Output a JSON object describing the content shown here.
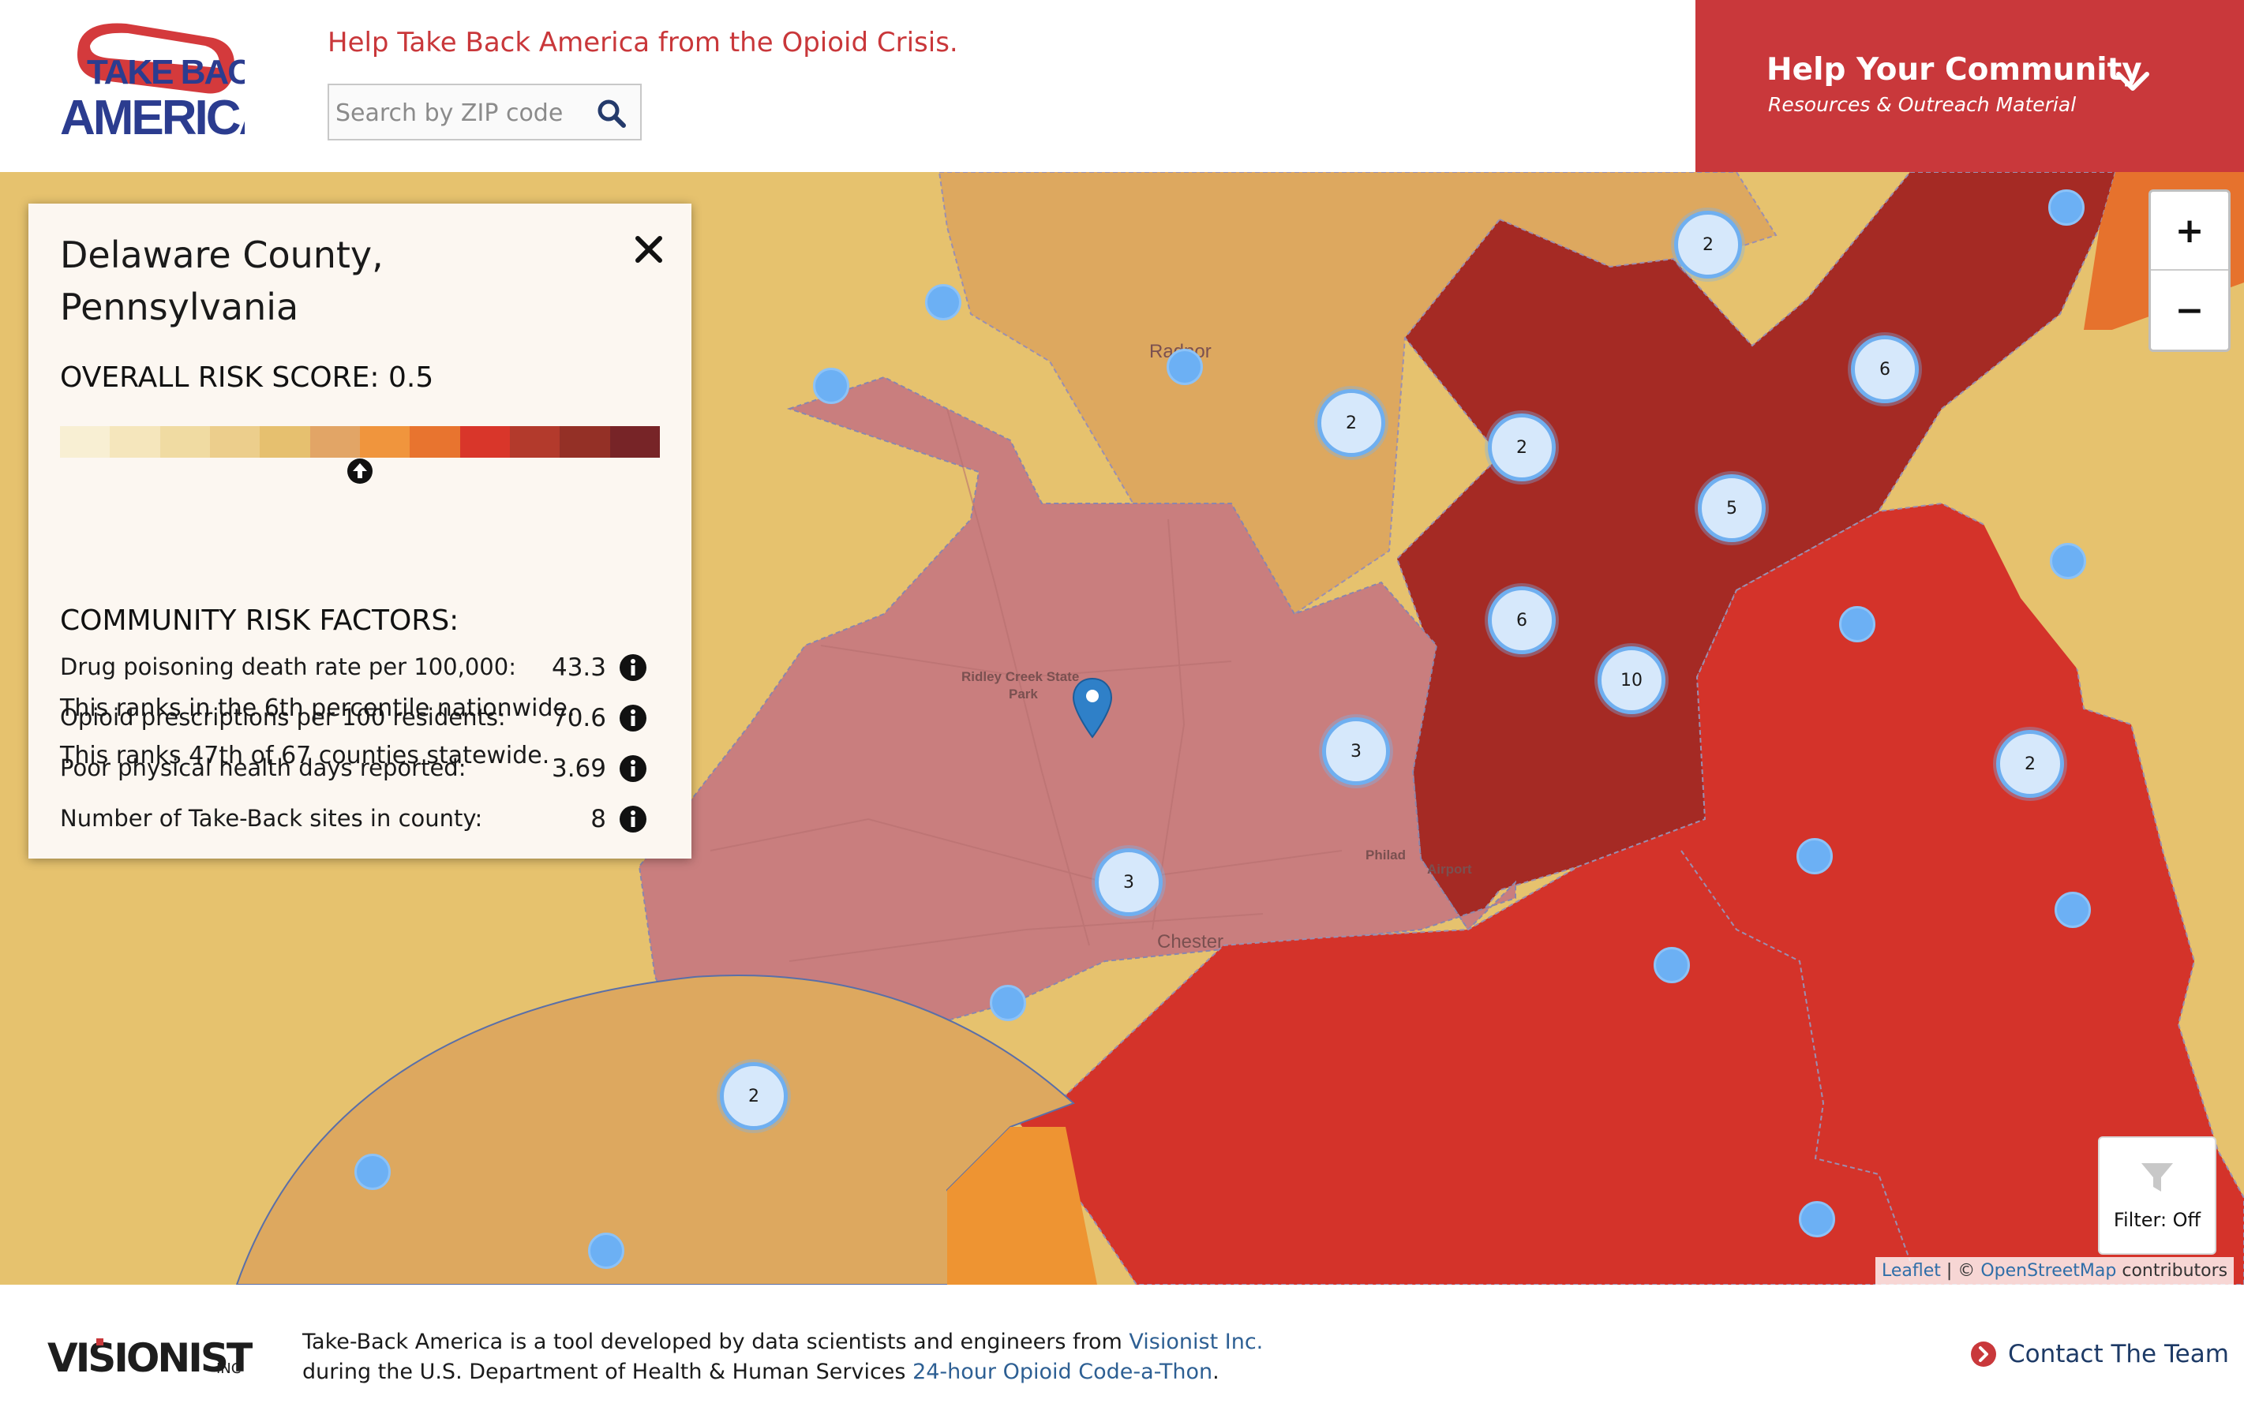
{
  "header": {
    "logo_text_top": "TAKE BACK",
    "logo_text_bottom": "AMERICA",
    "tagline": "Help Take Back America from the Opioid Crisis.",
    "search_placeholder": "Search by ZIP code",
    "search_icon": "search-icon",
    "community_title": "Help Your Community",
    "community_subtitle": "Resources & Outreach Material",
    "community_icon": "chevron-down-icon",
    "colors": {
      "brand_red": "#c9383b",
      "brand_navy": "#2b3c8f"
    }
  },
  "county": {
    "name": "Delaware County, Pennsylvania",
    "risk_score_label": "OVERALL RISK SCORE: 0.5",
    "risk_score": 0.5,
    "risk_scale_colors": [
      "#f8efd3",
      "#f5e6bc",
      "#f0dba2",
      "#ecce8c",
      "#e6c06f",
      "#e2a566",
      "#f0953d",
      "#e8742f",
      "#d9362a",
      "#b33a2c",
      "#943026",
      "#772427"
    ],
    "rank_nation": [
      "This ranks in the ",
      "6th",
      " percentile nationwide."
    ],
    "rank_state": [
      "This ranks ",
      "47th",
      " of ",
      "67",
      " counties statewide."
    ],
    "factors_title": "COMMUNITY RISK FACTORS:",
    "factors": [
      {
        "label": "Drug poisoning death rate per 100,000:",
        "value": "43.3"
      },
      {
        "label": "Opioid prescriptions per 100 residents:",
        "value": "70.6"
      },
      {
        "label": "Poor physical health days reported:",
        "value": "3.69"
      },
      {
        "label": "Number of Take-Back sites in county:",
        "value": "8"
      }
    ]
  },
  "map": {
    "place_labels": [
      "Radnor",
      "Ridley Creek State",
      "Park",
      "Philad",
      "Airport",
      "Chester"
    ],
    "clusters": [
      "2",
      "2",
      "2",
      "6",
      "2",
      "5",
      "6",
      "10",
      "3",
      "2",
      "3",
      "2"
    ],
    "zoom_in": "+",
    "zoom_out": "−",
    "filter_label": "Filter: Off",
    "attribution": {
      "leaflet": "Leaflet",
      "sep": " | © ",
      "osm": "OpenStreetMap",
      "rest": " contributors"
    }
  },
  "footer": {
    "logo_text": "VISIONIST",
    "logo_suffix": "INC",
    "line1_pre": "Take-Back America is a tool developed by data scientists and engineers from ",
    "line1_link": "Visionist Inc.",
    "line2_pre": "during the U.S. Department of Health & Human Services ",
    "line2_link": "24-hour Opioid Code-a-Thon",
    "line2_post": ".",
    "contact_label": "Contact The Team"
  }
}
